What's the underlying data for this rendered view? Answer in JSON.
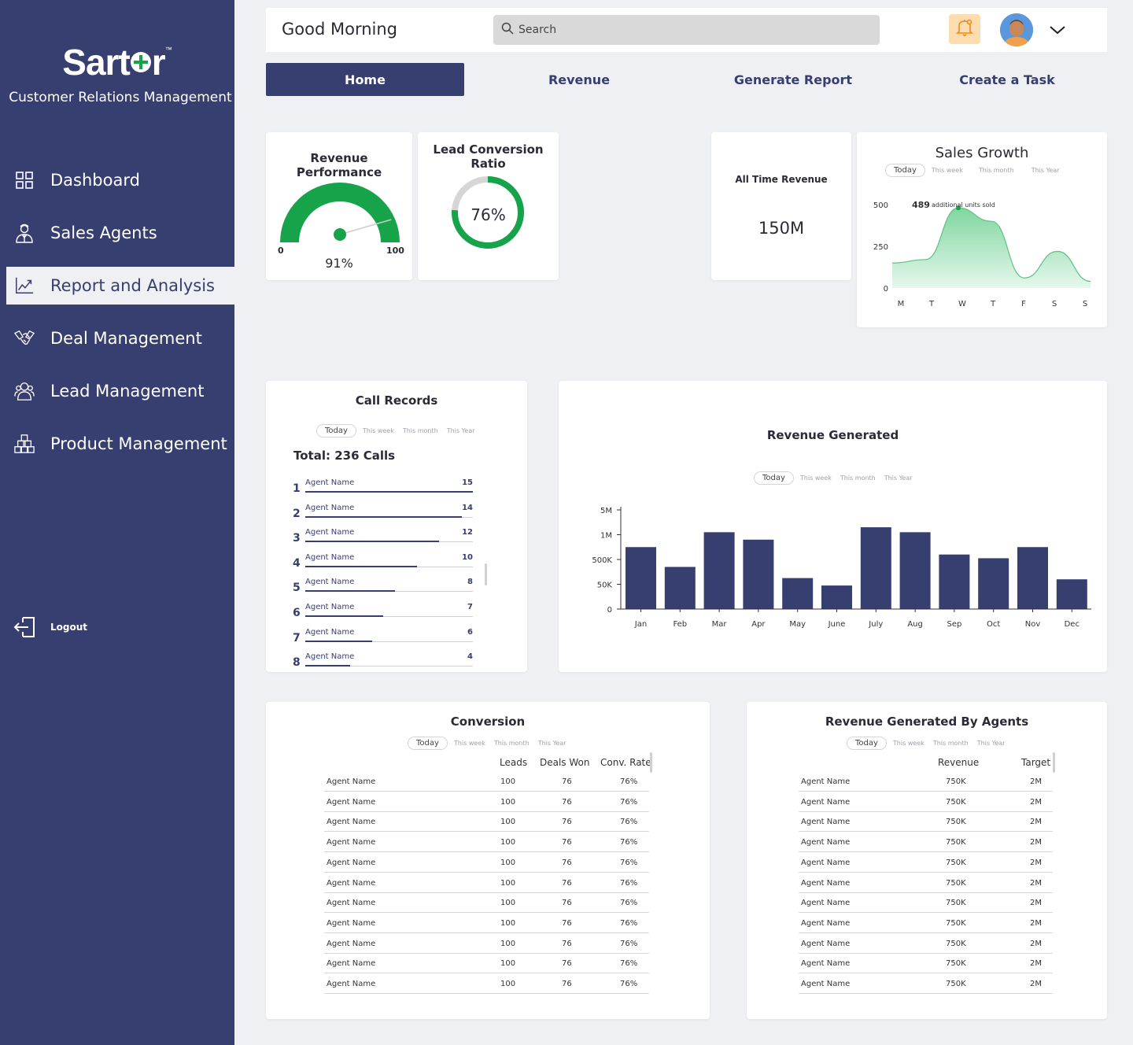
{
  "brand": {
    "name_a": "Sart",
    "name_b": "r",
    "tm": "™",
    "tagline": "Customer Relations Management"
  },
  "sidebar": {
    "items": [
      {
        "label": "Dashboard",
        "icon": "grid-icon"
      },
      {
        "label": "Sales Agents",
        "icon": "agent-icon"
      },
      {
        "label": "Report and Analysis",
        "icon": "chart-icon"
      },
      {
        "label": "Deal Management",
        "icon": "handshake-icon"
      },
      {
        "label": "Lead Management",
        "icon": "people-icon"
      },
      {
        "label": "Product Management",
        "icon": "boxes-icon"
      }
    ],
    "logout": "Logout"
  },
  "header": {
    "greeting": "Good Morning",
    "search_placeholder": "Search"
  },
  "tabs": [
    "Home",
    "Revenue",
    "Generate Report",
    "Create a Task"
  ],
  "filters": {
    "today": "Today",
    "week": "This week",
    "month": "This month",
    "year": "This Year"
  },
  "revenue_performance": {
    "title": "Revenue Performance",
    "min": "0",
    "max": "100",
    "value_label": "91%",
    "value": 91
  },
  "lead_conversion": {
    "title": "Lead Conversion Ratio",
    "value_label": "76%",
    "value": 76
  },
  "all_time_revenue": {
    "title": "All Time Revenue",
    "value": "150M"
  },
  "sales_growth": {
    "title": "Sales Growth",
    "peak_value": "489",
    "peak_note": "additional units sold"
  },
  "call_records": {
    "title": "Call Records",
    "total": "Total: 236 Calls",
    "rows": [
      {
        "rank": "1",
        "name": "Agent Name",
        "calls": "15",
        "value": 15
      },
      {
        "rank": "2",
        "name": "Agent Name",
        "calls": "14",
        "value": 14
      },
      {
        "rank": "3",
        "name": "Agent Name",
        "calls": "12",
        "value": 12
      },
      {
        "rank": "4",
        "name": "Agent Name",
        "calls": "10",
        "value": 10
      },
      {
        "rank": "5",
        "name": "Agent Name",
        "calls": "8",
        "value": 8
      },
      {
        "rank": "6",
        "name": "Agent Name",
        "calls": "7",
        "value": 7
      },
      {
        "rank": "7",
        "name": "Agent Name",
        "calls": "6",
        "value": 6
      },
      {
        "rank": "8",
        "name": "Agent Name",
        "calls": "4",
        "value": 4
      }
    ]
  },
  "revenue_generated": {
    "title": "Revenue Generated"
  },
  "conversion": {
    "title": "Conversion",
    "headers": [
      "Leads",
      "Deals Won",
      "Conv. Rate"
    ],
    "rows": [
      [
        "Agent Name",
        "100",
        "76",
        "76%"
      ],
      [
        "Agent Name",
        "100",
        "76",
        "76%"
      ],
      [
        "Agent Name",
        "100",
        "76",
        "76%"
      ],
      [
        "Agent Name",
        "100",
        "76",
        "76%"
      ],
      [
        "Agent Name",
        "100",
        "76",
        "76%"
      ],
      [
        "Agent Name",
        "100",
        "76",
        "76%"
      ],
      [
        "Agent Name",
        "100",
        "76",
        "76%"
      ],
      [
        "Agent Name",
        "100",
        "76",
        "76%"
      ],
      [
        "Agent Name",
        "100",
        "76",
        "76%"
      ],
      [
        "Agent Name",
        "100",
        "76",
        "76%"
      ],
      [
        "Agent Name",
        "100",
        "76",
        "76%"
      ]
    ]
  },
  "agents_revenue": {
    "title": "Revenue Generated By Agents",
    "headers": [
      "Revenue",
      "Target"
    ],
    "rows": [
      [
        "Agent Name",
        "750K",
        "2M"
      ],
      [
        "Agent Name",
        "750K",
        "2M"
      ],
      [
        "Agent Name",
        "750K",
        "2M"
      ],
      [
        "Agent Name",
        "750K",
        "2M"
      ],
      [
        "Agent Name",
        "750K",
        "2M"
      ],
      [
        "Agent Name",
        "750K",
        "2M"
      ],
      [
        "Agent Name",
        "750K",
        "2M"
      ],
      [
        "Agent Name",
        "750K",
        "2M"
      ],
      [
        "Agent Name",
        "750K",
        "2M"
      ],
      [
        "Agent Name",
        "750K",
        "2M"
      ],
      [
        "Agent Name",
        "750K",
        "2M"
      ]
    ]
  },
  "colors": {
    "sidebar": "#373e70",
    "accent_green": "#16a34a",
    "bar": "#373e70",
    "bell_bg": "#fddcb0"
  },
  "chart_data": [
    {
      "type": "area",
      "title": "Sales Growth",
      "categories": [
        "M",
        "T",
        "W",
        "T",
        "F",
        "S",
        "S"
      ],
      "values": [
        150,
        170,
        480,
        400,
        60,
        220,
        40
      ],
      "yticks": [
        "500",
        "250",
        "0"
      ],
      "ylim": [
        0,
        500
      ]
    },
    {
      "type": "bar",
      "title": "Revenue Generated",
      "categories": [
        "Jan",
        "Feb",
        "Mar",
        "Apr",
        "May",
        "June",
        "July",
        "Aug",
        "Sep",
        "Oct",
        "Nov",
        "Dec"
      ],
      "values": [
        2.5,
        1.7,
        3.1,
        2.8,
        1.25,
        0.95,
        3.3,
        3.1,
        2.2,
        2.05,
        2.5,
        1.2
      ],
      "yticks": [
        "5M",
        "1M",
        "500K",
        "50K",
        "0"
      ],
      "ylim": [
        0,
        4
      ]
    }
  ]
}
